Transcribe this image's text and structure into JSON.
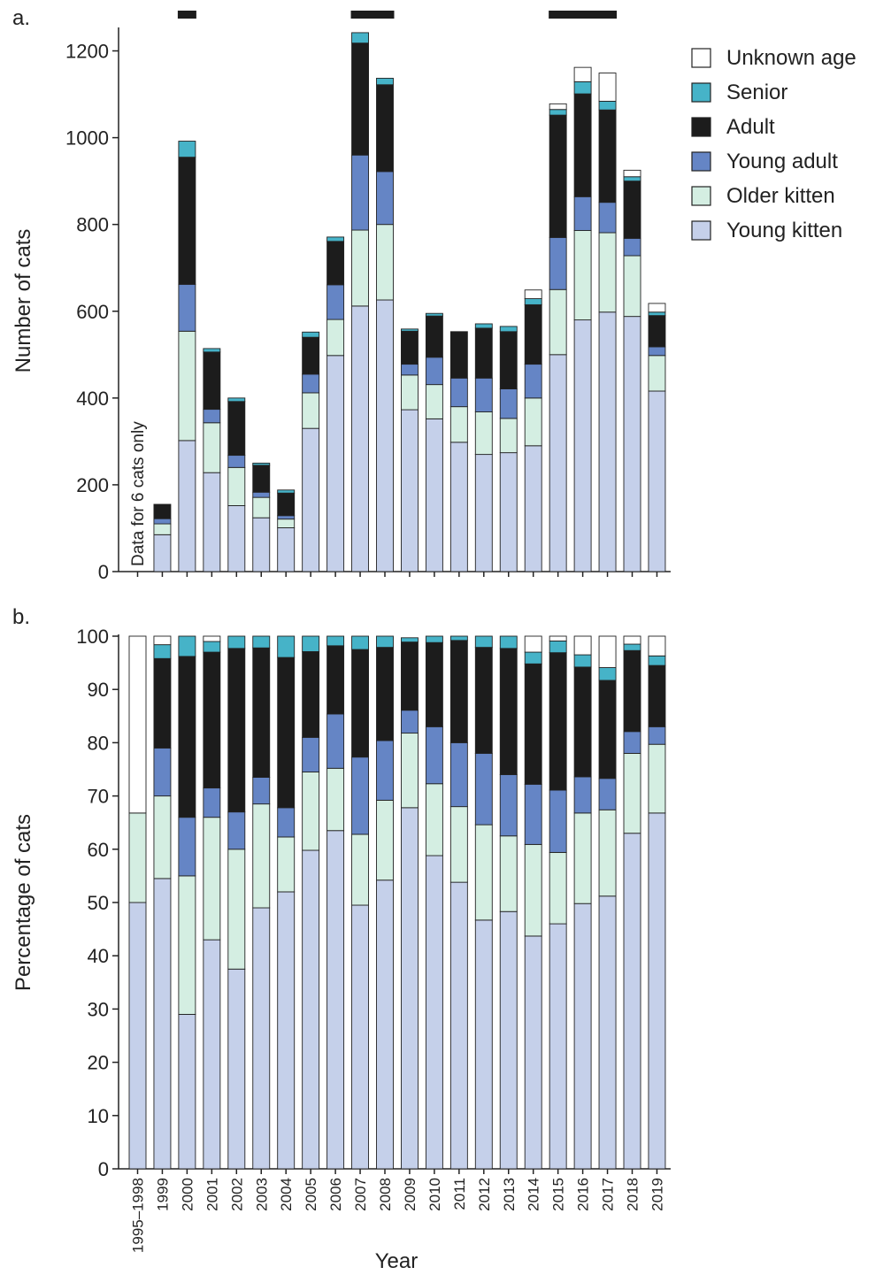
{
  "figure": {
    "panel_a_label": "a.",
    "panel_b_label": "b.",
    "note": "Data for 6 cats only",
    "xlabel": "Year"
  },
  "chart_data": [
    {
      "type": "bar",
      "stacked": true,
      "panel": "a.",
      "ylabel": "Number of cats",
      "ylim": [
        0,
        1250
      ],
      "yticks": [
        0,
        200,
        400,
        600,
        800,
        1000,
        1200
      ],
      "categories": [
        "1995–1998",
        "1999",
        "2000",
        "2001",
        "2002",
        "2003",
        "2004",
        "2005",
        "2006",
        "2007",
        "2008",
        "2009",
        "2010",
        "2011",
        "2012",
        "2013",
        "2014",
        "2015",
        "2016",
        "2017",
        "2018",
        "2019"
      ],
      "highlight_bars": [
        [
          "2000",
          "2000"
        ],
        [
          "2007",
          "2008"
        ],
        [
          "2015",
          "2017"
        ]
      ],
      "annotations": [
        {
          "category": "1995–1998",
          "text": "Data for 6 cats only"
        }
      ],
      "legend": {
        "position": "top-right",
        "order": [
          "Unknown age",
          "Senior",
          "Adult",
          "Young adult",
          "Older kitten",
          "Young kitten"
        ]
      },
      "series": [
        {
          "name": "Young kitten",
          "color": "#c5d0ea",
          "values": [
            0,
            85,
            302,
            228,
            152,
            124,
            101,
            330,
            498,
            612,
            626,
            373,
            352,
            298,
            270,
            274,
            290,
            500,
            580,
            598,
            588,
            416
          ]
        },
        {
          "name": "Older kitten",
          "color": "#d4eee2",
          "values": [
            0,
            25,
            252,
            115,
            88,
            47,
            20,
            82,
            83,
            175,
            174,
            80,
            79,
            82,
            98,
            79,
            110,
            150,
            206,
            183,
            140,
            82
          ]
        },
        {
          "name": "Young adult",
          "color": "#6585c5",
          "values": [
            0,
            12,
            108,
            31,
            28,
            12,
            8,
            43,
            80,
            173,
            122,
            25,
            63,
            66,
            78,
            68,
            78,
            120,
            78,
            70,
            40,
            20
          ]
        },
        {
          "name": "Adult",
          "color": "#1c1c1c",
          "values": [
            0,
            33,
            293,
            132,
            124,
            62,
            52,
            85,
            100,
            258,
            200,
            76,
            95,
            107,
            115,
            132,
            137,
            282,
            237,
            213,
            132,
            72
          ]
        },
        {
          "name": "Senior",
          "color": "#46b3c8",
          "values": [
            0,
            0,
            37,
            8,
            8,
            5,
            7,
            12,
            10,
            24,
            15,
            5,
            6,
            0,
            10,
            12,
            14,
            13,
            28,
            20,
            10,
            8
          ]
        },
        {
          "name": "Unknown age",
          "color": "#ffffff",
          "values": [
            0,
            0,
            0,
            0,
            0,
            0,
            0,
            0,
            0,
            0,
            0,
            0,
            0,
            0,
            0,
            0,
            20,
            13,
            33,
            65,
            15,
            20
          ]
        }
      ]
    },
    {
      "type": "bar",
      "stacked": true,
      "panel": "b.",
      "ylabel": "Percentage of cats",
      "ylim": [
        0,
        100
      ],
      "yticks": [
        0,
        10,
        20,
        30,
        40,
        50,
        60,
        70,
        80,
        90,
        100
      ],
      "categories": [
        "1995–1998",
        "1999",
        "2000",
        "2001",
        "2002",
        "2003",
        "2004",
        "2005",
        "2006",
        "2007",
        "2008",
        "2009",
        "2010",
        "2011",
        "2012",
        "2013",
        "2014",
        "2015",
        "2016",
        "2017",
        "2018",
        "2019"
      ],
      "series": [
        {
          "name": "Young kitten",
          "color": "#c5d0ea",
          "values": [
            50,
            54.5,
            29,
            43,
            37.5,
            49,
            52,
            59.8,
            63.5,
            49.5,
            54.2,
            67.8,
            58.8,
            53.8,
            46.7,
            48.3,
            43.7,
            46,
            49.8,
            51.2,
            63,
            66.8
          ]
        },
        {
          "name": "Older kitten",
          "color": "#d4eee2",
          "values": [
            16.8,
            15.5,
            26,
            23,
            22.5,
            19.5,
            10.3,
            14.7,
            11.7,
            13.3,
            15,
            14,
            13.5,
            14.2,
            17.9,
            14.2,
            17.2,
            13.4,
            17,
            16.2,
            15,
            12.9
          ]
        },
        {
          "name": "Young adult",
          "color": "#6585c5",
          "values": [
            0,
            9,
            11,
            5.5,
            7,
            5,
            5.5,
            6.5,
            10.2,
            14.5,
            11.2,
            4.3,
            10.7,
            12,
            13.4,
            11.5,
            11.3,
            11.7,
            6.8,
            5.9,
            4.1,
            3.3
          ]
        },
        {
          "name": "Adult",
          "color": "#1c1c1c",
          "values": [
            0,
            16.8,
            30.2,
            25.5,
            30.7,
            24.3,
            28.2,
            16.1,
            12.8,
            20.2,
            17.5,
            12.8,
            15.8,
            19.2,
            19.9,
            23.7,
            22.6,
            25.8,
            20.6,
            18.4,
            15.2,
            11.5
          ]
        },
        {
          "name": "Senior",
          "color": "#46b3c8",
          "values": [
            0,
            2.6,
            3.8,
            2,
            2.3,
            2.2,
            4,
            2.9,
            1.8,
            2.5,
            2.1,
            0.8,
            1.2,
            0.8,
            2.1,
            2.3,
            2.2,
            2.2,
            2.3,
            2.4,
            1.2,
            1.8
          ]
        },
        {
          "name": "Unknown age",
          "color": "#ffffff",
          "values": [
            33.2,
            1.6,
            0,
            1,
            0,
            0,
            0,
            0,
            0,
            0,
            0,
            0,
            0,
            0,
            0,
            0,
            3,
            0.9,
            3.5,
            5.9,
            1.5,
            3.7
          ]
        }
      ]
    }
  ]
}
